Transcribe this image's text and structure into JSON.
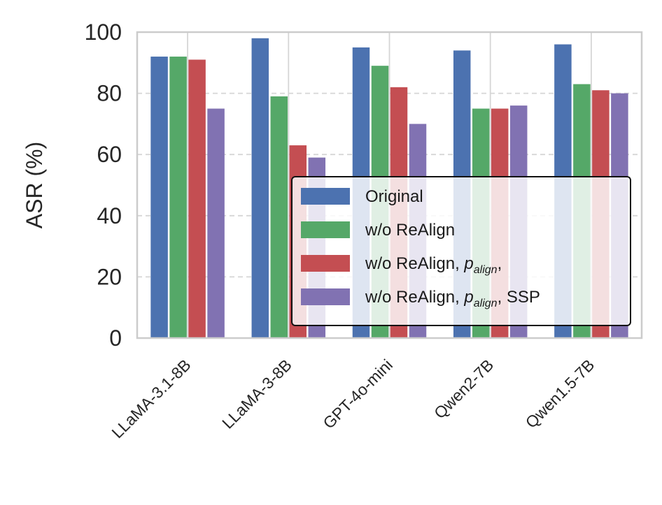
{
  "chart_data": {
    "type": "bar",
    "title": "",
    "xlabel": "",
    "ylabel": "ASR (%)",
    "ylim": [
      0,
      100
    ],
    "yticks": [
      0,
      20,
      40,
      60,
      80,
      100
    ],
    "grid": true,
    "legend_position": "lower-right",
    "categories": [
      "LLaMA-3.1-8B",
      "LLaMA-3-8B",
      "GPT-4o-mini",
      "Qwen2-7B",
      "Qwen1.5-7B"
    ],
    "series": [
      {
        "name": "Original",
        "color": "#4c72b0",
        "values": [
          92,
          98,
          95,
          94,
          96
        ]
      },
      {
        "name": "w/o ReAlign",
        "color": "#55a868",
        "values": [
          92,
          79,
          89,
          75,
          83
        ]
      },
      {
        "name": "w/o ReAlign, p_align,",
        "color": "#c44e52",
        "values": [
          91,
          63,
          82,
          75,
          81
        ],
        "label_parts": [
          "w/o ReAlign, ",
          "p",
          "align",
          ","
        ]
      },
      {
        "name": "w/o ReAlign, p_align, SSP",
        "color": "#8172b2",
        "values": [
          75,
          59,
          70,
          76,
          80
        ],
        "label_parts": [
          "w/o ReAlign, ",
          "p",
          "align",
          ", SSP"
        ]
      }
    ]
  }
}
